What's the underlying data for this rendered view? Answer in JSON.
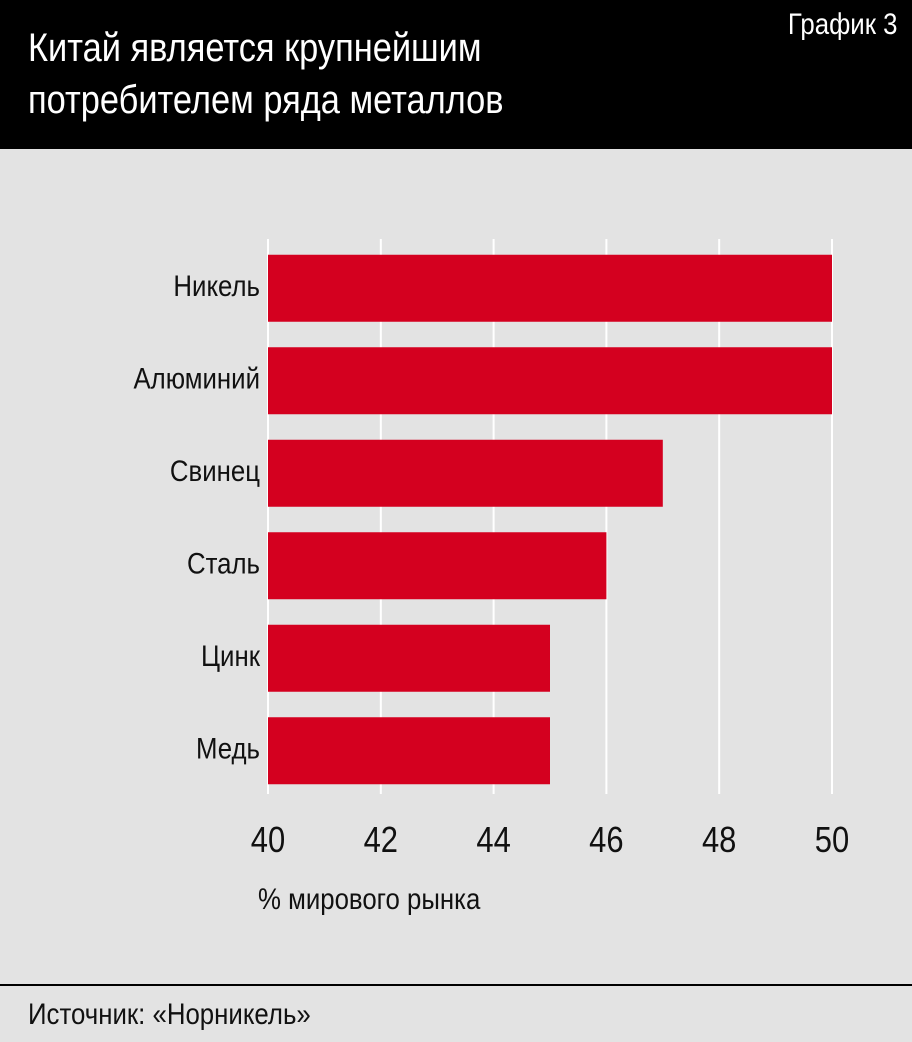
{
  "header": {
    "title_line1": "Китай является крупнейшим",
    "title_line2": "потребителем ряда металлов",
    "chart_number": "График 3"
  },
  "footer": {
    "source": "Источник: «Норникель»"
  },
  "colors": {
    "bar": "#d4001f",
    "background": "#e3e3e3",
    "grid": "#ffffff",
    "header": "#000000"
  },
  "chart_data": {
    "type": "bar",
    "orientation": "horizontal",
    "title": "Китай является крупнейшим потребителем ряда металлов",
    "categories": [
      "Никель",
      "Алюминий",
      "Свинец",
      "Сталь",
      "Цинк",
      "Медь"
    ],
    "values": [
      50,
      50,
      47,
      46,
      45,
      45
    ],
    "xlabel": "% мирового рынка",
    "ylabel": "",
    "xlim": [
      40,
      50
    ],
    "xticks": [
      "40",
      "42",
      "44",
      "46",
      "48",
      "50"
    ],
    "grid": true
  }
}
